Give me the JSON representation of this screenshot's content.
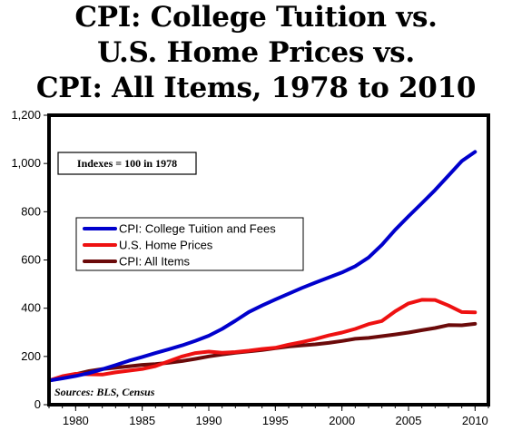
{
  "title_lines": [
    "CPI: College Tuition vs.",
    "U.S. Home Prices vs.",
    "CPI: All Items, 1978 to 2010"
  ],
  "chart_data": {
    "type": "line",
    "title": "CPI: College Tuition vs. U.S. Home Prices vs. CPI: All Items, 1978 to 2010",
    "xlabel": "",
    "ylabel": "",
    "xlim": [
      1978,
      2011
    ],
    "ylim": [
      0,
      1200
    ],
    "x_ticks": [
      1980,
      1985,
      1990,
      1995,
      2000,
      2005,
      2010
    ],
    "y_ticks": [
      0,
      200,
      400,
      600,
      800,
      1000,
      1200
    ],
    "y_tick_labels": [
      "0",
      "200",
      "400",
      "600",
      "800",
      "1,000",
      "1,200"
    ],
    "grid": false,
    "legend_position": "center-left",
    "annotation": "Indexes = 100 in 1978",
    "source": "Sources: BLS, Census",
    "x": [
      1978,
      1979,
      1980,
      1981,
      1982,
      1983,
      1984,
      1985,
      1986,
      1987,
      1988,
      1989,
      1990,
      1991,
      1992,
      1993,
      1994,
      1995,
      1996,
      1997,
      1998,
      1999,
      2000,
      2001,
      2002,
      2003,
      2004,
      2005,
      2006,
      2007,
      2008,
      2009,
      2010
    ],
    "series": [
      {
        "name": "CPI: College Tuition and Fees",
        "color": "#0000cc",
        "values": [
          100,
          109,
          119,
          131,
          147,
          164,
          182,
          198,
          214,
          230,
          246,
          265,
          286,
          314,
          348,
          384,
          411,
          436,
          460,
          484,
          506,
          527,
          548,
          574,
          610,
          663,
          725,
          781,
          835,
          890,
          950,
          1010,
          1048
        ]
      },
      {
        "name": "U.S. Home Prices",
        "color": "#ee1111",
        "values": [
          100,
          118,
          128,
          126,
          125,
          134,
          141,
          148,
          160,
          180,
          200,
          214,
          220,
          215,
          218,
          224,
          231,
          236,
          249,
          260,
          272,
          287,
          299,
          314,
          334,
          347,
          387,
          420,
          435,
          434,
          411,
          384,
          383
        ]
      },
      {
        "name": "CPI: All Items",
        "color": "#6b0a0a",
        "values": [
          100,
          111,
          126,
          139,
          148,
          153,
          159,
          165,
          168,
          174,
          181,
          190,
          200,
          208,
          215,
          221,
          227,
          234,
          241,
          246,
          250,
          256,
          264,
          273,
          277,
          284,
          291,
          299,
          309,
          318,
          330,
          329,
          335
        ]
      }
    ]
  }
}
